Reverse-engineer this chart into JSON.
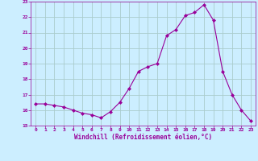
{
  "x": [
    0,
    1,
    2,
    3,
    4,
    5,
    6,
    7,
    8,
    9,
    10,
    11,
    12,
    13,
    14,
    15,
    16,
    17,
    18,
    19,
    20,
    21,
    22,
    23
  ],
  "y": [
    16.4,
    16.4,
    16.3,
    16.2,
    16.0,
    15.8,
    15.7,
    15.5,
    15.9,
    16.5,
    17.4,
    18.5,
    18.8,
    19.0,
    20.8,
    21.2,
    22.1,
    22.3,
    22.8,
    21.8,
    18.5,
    17.0,
    16.0,
    15.3
  ],
  "line_color": "#990099",
  "marker": "D",
  "marker_size": 2,
  "bg_color": "#cceeff",
  "grid_color": "#aacccc",
  "xlabel": "Windchill (Refroidissement éolien,°C)",
  "xlabel_color": "#990099",
  "tick_color": "#990099",
  "ylim": [
    15,
    23
  ],
  "xlim": [
    -0.5,
    23.5
  ],
  "yticks": [
    15,
    16,
    17,
    18,
    19,
    20,
    21,
    22,
    23
  ],
  "xticks": [
    0,
    1,
    2,
    3,
    4,
    5,
    6,
    7,
    8,
    9,
    10,
    11,
    12,
    13,
    14,
    15,
    16,
    17,
    18,
    19,
    20,
    21,
    22,
    23
  ]
}
